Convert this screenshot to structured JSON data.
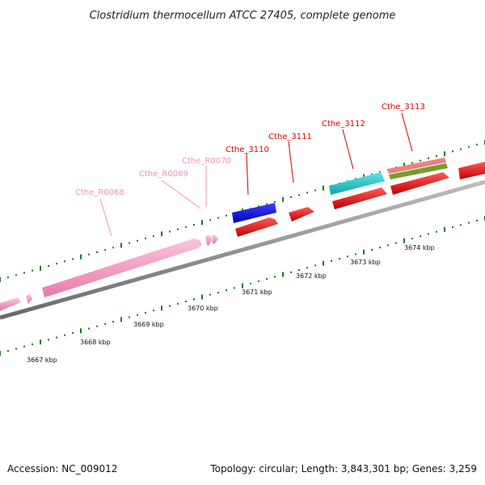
{
  "title": "Clostridium thermocellum ATCC 27405, complete genome",
  "footer": {
    "accession": "Accession: NC_009012",
    "summary": "Topology: circular; Length: 3,843,301 bp; Genes: 3,259"
  },
  "scale_labels": [
    "3667 kbp",
    "3668 kbp",
    "3669 kbp",
    "3670 kbp",
    "3671 kbp",
    "3672 kbp",
    "3673 kbp",
    "3674 kbp"
  ],
  "gene_labels": [
    {
      "id": "Cthe_R0068",
      "color": "#f48fb8"
    },
    {
      "id": "Cthe_R0069",
      "color": "#f48fb8"
    },
    {
      "id": "Cthe_R0070",
      "color": "#f48fb8"
    },
    {
      "id": "Cthe_3110",
      "color": "#e00000"
    },
    {
      "id": "Cthe_3111",
      "color": "#e00000"
    },
    {
      "id": "Cthe_3112",
      "color": "#e00000"
    },
    {
      "id": "Cthe_3113",
      "color": "#e00000"
    }
  ],
  "colors": {
    "rrna": "#f79ac6",
    "cds": "#ee0000",
    "blue_feature": "#1010e0",
    "cyan_feature": "#10c8cc",
    "salmon_feature": "#ec8080",
    "olive_feature": "#7a9a2a",
    "backbone": "#909090",
    "ticks": "#1a7a1a"
  }
}
